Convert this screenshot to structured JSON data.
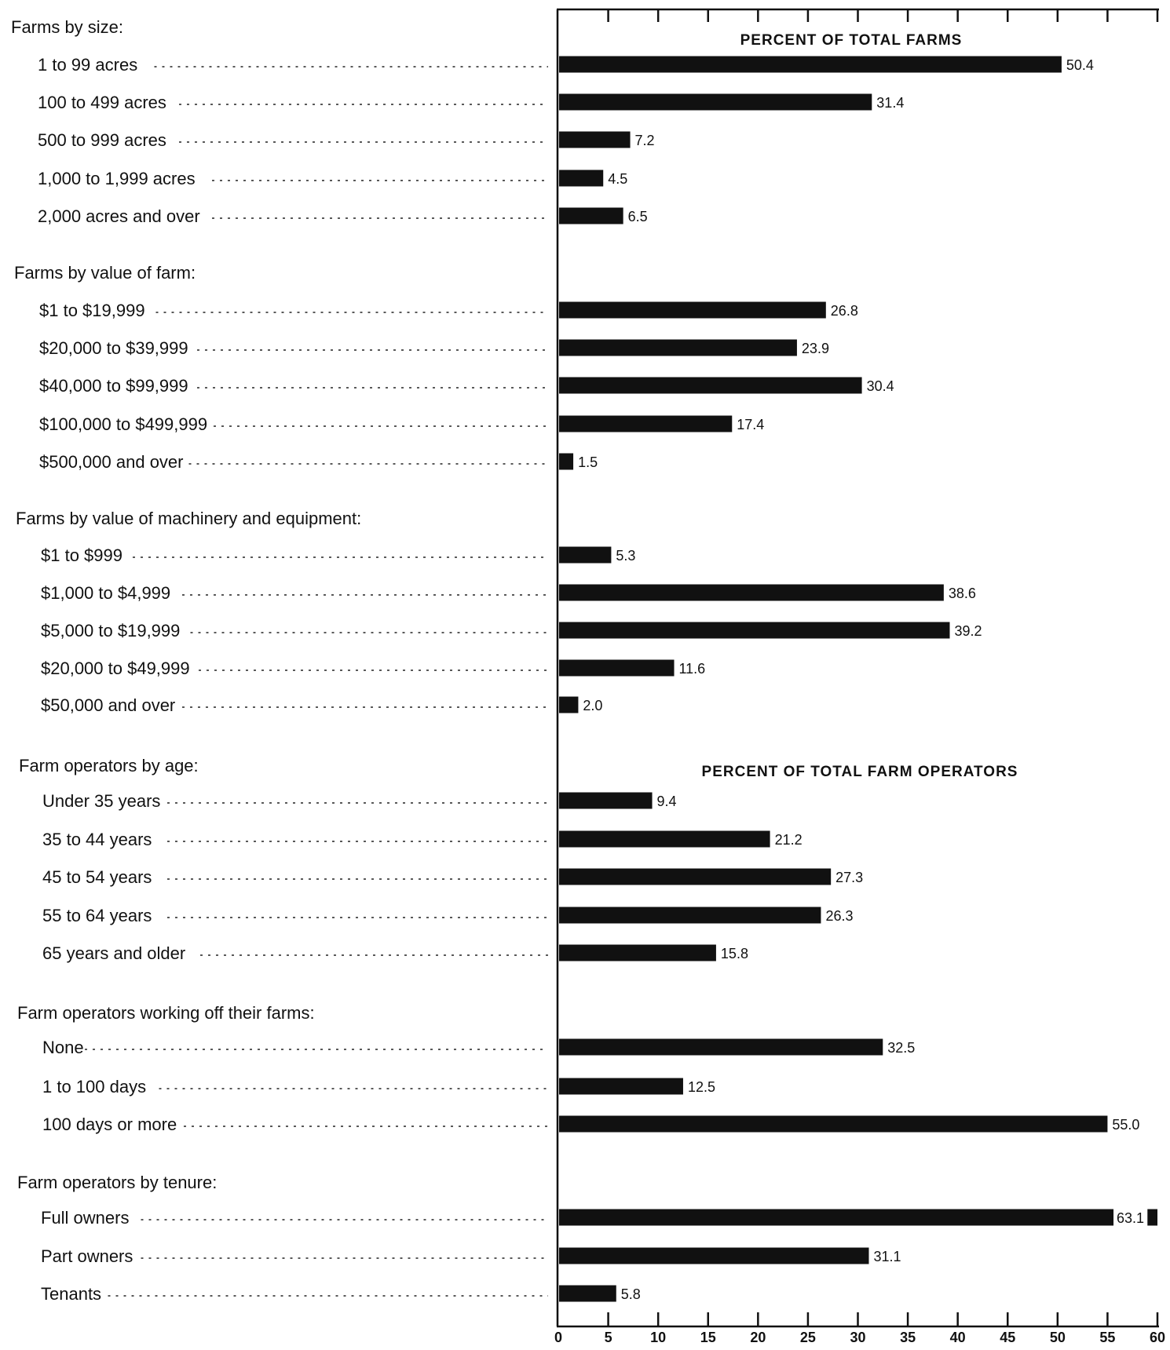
{
  "chart_data": {
    "type": "bar",
    "orientation": "horizontal",
    "xlim": [
      0,
      60
    ],
    "x_ticks": [
      0,
      5,
      10,
      15,
      20,
      25,
      30,
      35,
      40,
      45,
      50,
      55,
      60
    ],
    "grid": false,
    "section_titles": [
      "PERCENT OF TOTAL FARMS",
      "PERCENT OF TOTAL FARM OPERATORS"
    ],
    "groups": [
      {
        "label": "Farms by size:",
        "categories": [
          "1 to 99 acres",
          "100 to 499 acres",
          "500 to 999 acres",
          "1,000 to 1,999 acres",
          "2,000 acres and over"
        ],
        "values": [
          50.4,
          31.4,
          7.2,
          4.5,
          6.5
        ],
        "value_labels": [
          "50.4",
          "31.4",
          "7.2",
          "4.5",
          "6.5"
        ]
      },
      {
        "label": "Farms by value of farm:",
        "categories": [
          "$1 to $19,999",
          "$20,000 to $39,999",
          "$40,000 to $99,999",
          "$100,000 to $499,999",
          "$500,000 and over"
        ],
        "values": [
          26.8,
          23.9,
          30.4,
          17.4,
          1.5
        ],
        "value_labels": [
          "26.8",
          "23.9",
          "30.4",
          "17.4",
          "1.5"
        ]
      },
      {
        "label": "Farms by value of machinery and equipment:",
        "categories": [
          "$1 to $999",
          "$1,000 to $4,999",
          "$5,000 to $19,999",
          "$20,000 to $49,999",
          "$50,000 and over"
        ],
        "values": [
          5.3,
          38.6,
          39.2,
          11.6,
          2.0
        ],
        "value_labels": [
          "5.3",
          "38.6",
          "39.2",
          "11.6",
          "2.0"
        ]
      },
      {
        "label": "Farm operators by age:",
        "categories": [
          "Under 35 years",
          "35 to 44 years",
          "45 to 54 years",
          "55 to 64 years",
          "65 years and older"
        ],
        "values": [
          9.4,
          21.2,
          27.3,
          26.3,
          15.8
        ],
        "value_labels": [
          "9.4",
          "21.2",
          "27.3",
          "26.3",
          "15.8"
        ]
      },
      {
        "label": "Farm operators working off their farms:",
        "categories": [
          "None",
          "1 to 100 days",
          "100 days or more"
        ],
        "values": [
          32.5,
          12.5,
          55.0
        ],
        "value_labels": [
          "32.5",
          "12.5",
          "55.0"
        ]
      },
      {
        "label": "Farm operators by tenure:",
        "categories": [
          "Full owners",
          "Part owners",
          "Tenants"
        ],
        "values": [
          63.1,
          31.1,
          5.8
        ],
        "value_labels": [
          "63.1",
          "31.1",
          "5.8"
        ]
      }
    ]
  }
}
